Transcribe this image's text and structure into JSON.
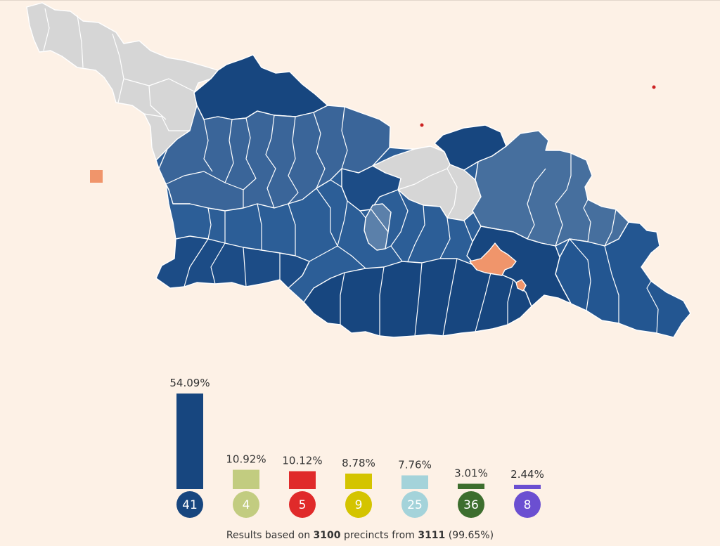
{
  "colors": {
    "background": "#fdf1e6",
    "no_data": "#d6d6d6",
    "blue_shades": [
      "#17467f",
      "#1c4c86",
      "#235691",
      "#2c5e97",
      "#3a6599",
      "#466f9e",
      "#4f78a6",
      "#5b80aa"
    ],
    "orange": "#f0956b",
    "marker_red": "#cc2222"
  },
  "chart_data": {
    "type": "bar",
    "ylim": [
      0,
      54.09
    ],
    "categories": [
      "41",
      "4",
      "5",
      "9",
      "25",
      "36",
      "8"
    ],
    "values": [
      54.09,
      10.92,
      10.12,
      8.78,
      7.76,
      3.01,
      2.44
    ],
    "labels": [
      "54.09%",
      "10.92%",
      "10.12%",
      "8.78%",
      "7.76%",
      "3.01%",
      "2.44%"
    ],
    "colors": [
      "#17467f",
      "#c2cc80",
      "#e02a2a",
      "#d4c400",
      "#a4d3da",
      "#3d6e2e",
      "#6b4fd1"
    ]
  },
  "footer": {
    "prefix": "Results based on ",
    "precincts": "3100",
    "middle": " precincts from ",
    "total": "3111",
    "suffix": " (99.65%)"
  }
}
